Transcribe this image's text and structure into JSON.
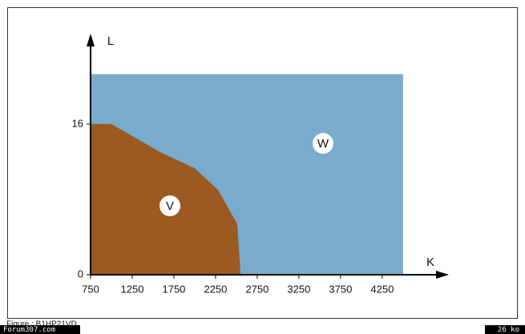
{
  "chart_data": {
    "type": "region",
    "xlabel": "K",
    "ylabel": "L",
    "xlim": [
      750,
      5050
    ],
    "ylim": [
      0,
      25.6
    ],
    "xticks": [
      750,
      1250,
      1750,
      2250,
      2750,
      3250,
      3750,
      4250
    ],
    "yticks": [
      0,
      16
    ],
    "series": [
      {
        "name": "W",
        "color": "#78abcc",
        "x": [
          750,
          4500,
          4500,
          750
        ],
        "values": [
          0,
          0,
          21.3,
          21.3
        ]
      },
      {
        "name": "V",
        "color": "#9a5a22",
        "x": [
          750,
          1000,
          1590,
          2000,
          2280,
          2510,
          2550,
          750
        ],
        "values": [
          16,
          16,
          13,
          11.3,
          9,
          5.4,
          0,
          0
        ]
      }
    ]
  },
  "footer": {
    "caption": "Figure : B1HP21VD",
    "site": "Forum307.com",
    "size": "26 ko"
  }
}
